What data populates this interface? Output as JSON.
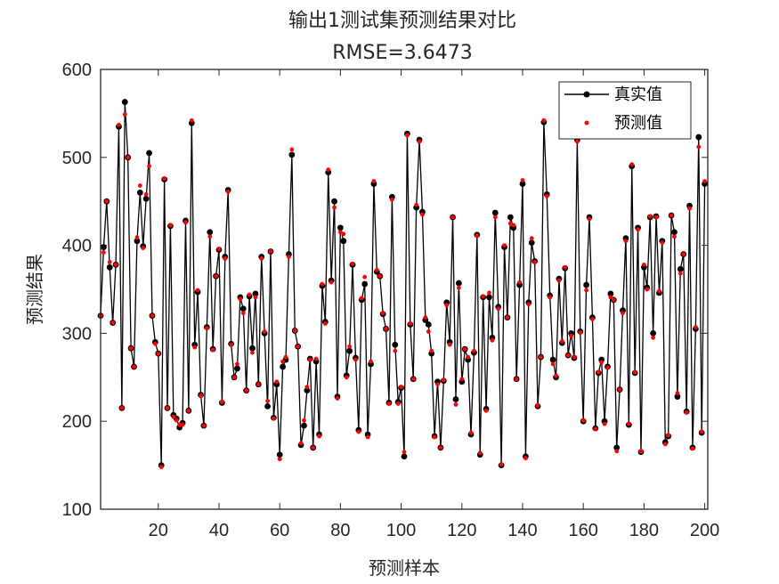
{
  "chart_data": {
    "type": "line",
    "title": "输出1测试集预测结果对比",
    "subtitle": "RMSE=3.6473",
    "xlabel": "预测样本",
    "ylabel": "预测结果",
    "xlim": [
      1,
      201
    ],
    "ylim": [
      100,
      600
    ],
    "xticks": [
      20,
      40,
      60,
      80,
      100,
      120,
      140,
      160,
      180,
      200
    ],
    "yticks": [
      100,
      200,
      300,
      400,
      500,
      600
    ],
    "legend_position": "top-right",
    "series": [
      {
        "name": "真实值",
        "style": "line-with-dots",
        "color": "#000000",
        "values": [
          320,
          398,
          450,
          375,
          312,
          378,
          535,
          215,
          563,
          500,
          283,
          262,
          405,
          460,
          399,
          453,
          505,
          320,
          290,
          277,
          150,
          475,
          215,
          422,
          207,
          203,
          193,
          198,
          428,
          212,
          539,
          287,
          347,
          230,
          195,
          307,
          415,
          282,
          365,
          395,
          221,
          387,
          463,
          288,
          250,
          260,
          341,
          328,
          235,
          342,
          283,
          345,
          242,
          387,
          300,
          217,
          393,
          204,
          242,
          162,
          262,
          270,
          390,
          503,
          303,
          285,
          173,
          195,
          235,
          271,
          170,
          268,
          185,
          354,
          313,
          483,
          360,
          450,
          228,
          420,
          405,
          252,
          280,
          378,
          272,
          190,
          338,
          356,
          185,
          265,
          470,
          370,
          365,
          322,
          305,
          221,
          455,
          287,
          222,
          238,
          160,
          527,
          310,
          248,
          443,
          520,
          438,
          315,
          310,
          277,
          183,
          245,
          170,
          246,
          335,
          290,
          432,
          225,
          357,
          245,
          282,
          270,
          185,
          278,
          412,
          162,
          341,
          214,
          341,
          295,
          437,
          330,
          150,
          398,
          318,
          432,
          420,
          248,
          355,
          470,
          160,
          335,
          403,
          382,
          217,
          273,
          540,
          458,
          343,
          270,
          250,
          362,
          289,
          374,
          275,
          300,
          272,
          520,
          302,
          200,
          355,
          432,
          318,
          192,
          255,
          270,
          200,
          262,
          345,
          338,
          170,
          236,
          326,
          408,
          196,
          490,
          255,
          420,
          165,
          375,
          352,
          432,
          300,
          433,
          346,
          405,
          176,
          183,
          434,
          415,
          228,
          373,
          390,
          211,
          445,
          170,
          305,
          523,
          187,
          470
        ]
      },
      {
        "name": "预测值",
        "style": "dots",
        "color": "#ff0000",
        "values": [
          320,
          392,
          450,
          381,
          312,
          378,
          537,
          215,
          549,
          500,
          283,
          262,
          409,
          468,
          397,
          458,
          490,
          320,
          288,
          277,
          148,
          476,
          215,
          423,
          205,
          201,
          196,
          196,
          426,
          212,
          542,
          284,
          349,
          229,
          195,
          306,
          410,
          281,
          365,
          396,
          222,
          385,
          461,
          287,
          250,
          265,
          339,
          323,
          235,
          344,
          278,
          341,
          242,
          385,
          302,
          223,
          393,
          203,
          245,
          157,
          268,
          273,
          387,
          509,
          303,
          285,
          175,
          201,
          239,
          270,
          170,
          271,
          183,
          356,
          311,
          486,
          358,
          443,
          226,
          415,
          413,
          250,
          285,
          379,
          270,
          188,
          340,
          364,
          182,
          268,
          473,
          372,
          365,
          323,
          305,
          220,
          452,
          280,
          220,
          239,
          165,
          525,
          311,
          248,
          446,
          518,
          435,
          318,
          302,
          280,
          182,
          242,
          170,
          247,
          332,
          287,
          432,
          219,
          352,
          248,
          282,
          273,
          187,
          280,
          411,
          164,
          342,
          212,
          346,
          292,
          432,
          328,
          151,
          400,
          318,
          425,
          423,
          248,
          358,
          474,
          158,
          333,
          408,
          381,
          218,
          273,
          542,
          456,
          341,
          265,
          252,
          360,
          291,
          375,
          275,
          297,
          273,
          518,
          301,
          201,
          349,
          430,
          316,
          191,
          256,
          267,
          197,
          261,
          341,
          338,
          166,
          236,
          323,
          405,
          197,
          492,
          256,
          418,
          166,
          378,
          350,
          433,
          295,
          432,
          348,
          403,
          174,
          184,
          434,
          410,
          232,
          368,
          390,
          210,
          442,
          169,
          307,
          512,
          188,
          473
        ]
      }
    ]
  }
}
